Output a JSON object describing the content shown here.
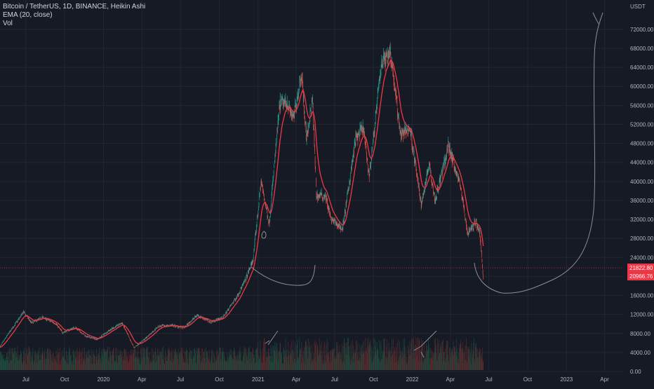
{
  "legend": {
    "symbol_line": "Bitcoin / TetherUS, 1D, BINANCE, Heikin Ashi",
    "ema_line": "EMA (20, close)",
    "vol_line": "Vol"
  },
  "colors": {
    "background": "#161a25",
    "grid": "#232733",
    "axis_text": "#b2b5be",
    "up_candle": "#26a69a",
    "down_candle": "#ef5350",
    "ema": "#f23645",
    "price_label_bg": "#f23645",
    "drawing": "#8a8e99",
    "volume_up": "#1e4d3f",
    "volume_down": "#5c2a2e"
  },
  "chart_data": {
    "type": "candlestick",
    "series_names": [
      "Bitcoin / TetherUS, 1D, BINANCE, Heikin Ashi",
      "EMA (20, close)",
      "Vol"
    ],
    "y_axis_unit": "USDT",
    "ylim": [
      0,
      77000
    ],
    "y_ticks": [
      {
        "value": 0,
        "label": "0.00"
      },
      {
        "value": 4000,
        "label": "4000.00"
      },
      {
        "value": 8000,
        "label": "8000.00"
      },
      {
        "value": 12000,
        "label": "12000.00"
      },
      {
        "value": 16000,
        "label": "16000.00"
      },
      {
        "value": 20000,
        "label": "20000.00"
      },
      {
        "value": 24000,
        "label": "24000.00"
      },
      {
        "value": 28000,
        "label": "28000.00"
      },
      {
        "value": 32000,
        "label": "32000.00"
      },
      {
        "value": 36000,
        "label": "36000.00"
      },
      {
        "value": 40000,
        "label": "40000.00"
      },
      {
        "value": 44000,
        "label": "44000.00"
      },
      {
        "value": 48000,
        "label": "48000.00"
      },
      {
        "value": 52000,
        "label": "52000.00"
      },
      {
        "value": 56000,
        "label": "56000.00"
      },
      {
        "value": 60000,
        "label": "60000.00"
      },
      {
        "value": 64000,
        "label": "64000.00"
      },
      {
        "value": 68000,
        "label": "68000.00"
      },
      {
        "value": 72000,
        "label": "72000.00"
      }
    ],
    "x_ticks": [
      {
        "date": "2019-07-01",
        "label": "Jul"
      },
      {
        "date": "2019-10-01",
        "label": "Oct"
      },
      {
        "date": "2020-01-01",
        "label": "2020"
      },
      {
        "date": "2020-04-01",
        "label": "Apr"
      },
      {
        "date": "2020-07-01",
        "label": "Jul"
      },
      {
        "date": "2020-10-01",
        "label": "Oct"
      },
      {
        "date": "2021-01-01",
        "label": "2021"
      },
      {
        "date": "2021-04-01",
        "label": "Apr"
      },
      {
        "date": "2021-07-01",
        "label": "Jul"
      },
      {
        "date": "2021-10-01",
        "label": "Oct"
      },
      {
        "date": "2022-01-01",
        "label": "2022"
      },
      {
        "date": "2022-04-01",
        "label": "Apr"
      },
      {
        "date": "2022-07-01",
        "label": "Jul"
      },
      {
        "date": "2022-10-01",
        "label": "Oct"
      },
      {
        "date": "2023-01-01",
        "label": "2023"
      },
      {
        "date": "2023-04-01",
        "label": "Apr"
      }
    ],
    "xlim": [
      "2019-05-01",
      "2023-05-15"
    ],
    "price_path": [
      [
        "2019-05-01",
        5200
      ],
      [
        "2019-05-20",
        7800
      ],
      [
        "2019-06-26",
        12500
      ],
      [
        "2019-07-15",
        10200
      ],
      [
        "2019-08-10",
        11400
      ],
      [
        "2019-09-10",
        10100
      ],
      [
        "2019-09-26",
        8200
      ],
      [
        "2019-10-26",
        9300
      ],
      [
        "2019-11-22",
        7300
      ],
      [
        "2019-12-18",
        6800
      ],
      [
        "2020-01-15",
        8700
      ],
      [
        "2020-02-14",
        10200
      ],
      [
        "2020-03-13",
        5000
      ],
      [
        "2020-04-10",
        7000
      ],
      [
        "2020-05-10",
        9500
      ],
      [
        "2020-06-10",
        9700
      ],
      [
        "2020-07-10",
        9200
      ],
      [
        "2020-08-10",
        11900
      ],
      [
        "2020-09-10",
        10400
      ],
      [
        "2020-10-10",
        11400
      ],
      [
        "2020-11-10",
        15500
      ],
      [
        "2020-12-01",
        19000
      ],
      [
        "2020-12-20",
        23500
      ],
      [
        "2021-01-08",
        40000
      ],
      [
        "2021-01-27",
        31000
      ],
      [
        "2021-02-21",
        56000
      ],
      [
        "2021-03-10",
        57000
      ],
      [
        "2021-03-25",
        53000
      ],
      [
        "2021-04-14",
        63000
      ],
      [
        "2021-04-25",
        49000
      ],
      [
        "2021-05-10",
        57000
      ],
      [
        "2021-05-19",
        37000
      ],
      [
        "2021-06-10",
        37000
      ],
      [
        "2021-06-22",
        32000
      ],
      [
        "2021-07-20",
        30000
      ],
      [
        "2021-08-20",
        49000
      ],
      [
        "2021-09-07",
        51000
      ],
      [
        "2021-09-21",
        41000
      ],
      [
        "2021-10-20",
        65000
      ],
      [
        "2021-11-10",
        67500
      ],
      [
        "2021-12-04",
        50000
      ],
      [
        "2021-12-27",
        51000
      ],
      [
        "2022-01-22",
        35000
      ],
      [
        "2022-02-10",
        44000
      ],
      [
        "2022-02-24",
        36000
      ],
      [
        "2022-03-28",
        47500
      ],
      [
        "2022-04-25",
        39000
      ],
      [
        "2022-05-12",
        29000
      ],
      [
        "2022-06-01",
        31500
      ],
      [
        "2022-06-10",
        29000
      ],
      [
        "2022-06-18",
        20000
      ]
    ],
    "price_labels": [
      {
        "value": 21822.8,
        "label": "21822.80"
      },
      {
        "value": 20966.76,
        "label": "20966.76"
      }
    ],
    "horizontal_line": 21822.8
  }
}
